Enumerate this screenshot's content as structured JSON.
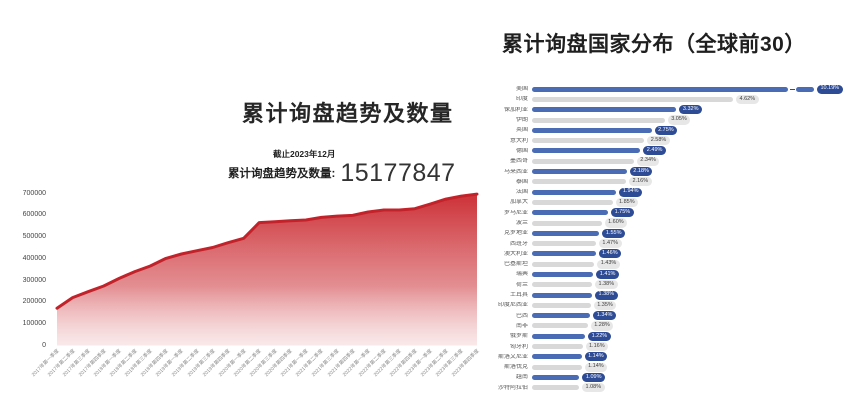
{
  "trend_chart": {
    "title": "累计询盘趋势及数量",
    "asof_label": "截止2023年12月",
    "total_label": "累计询盘趋势及数量:",
    "total_value": "15177847"
  },
  "country_chart": {
    "title": "累计询盘国家分布（全球前30）"
  },
  "colors": {
    "area_red_top": "#cb2d33",
    "line_red": "#c2232b",
    "bar_blue": "#4a6cb4",
    "pill_blue": "#2e4c96",
    "bar_gray": "#d8d8d8",
    "pill_gray": "#e7e7e7"
  },
  "chart_data": [
    {
      "type": "area",
      "title": "累计询盘趋势及数量",
      "annotation": "截止2023年12月 累计询盘趋势及数量: 15177847",
      "xlabel": "",
      "ylabel": "",
      "ylim": [
        0,
        700000
      ],
      "yticks": [
        0,
        100000,
        200000,
        300000,
        400000,
        500000,
        600000,
        700000
      ],
      "grid": false,
      "x": [
        "2017年第一季度",
        "2017年第二季度",
        "2017年第三季度",
        "2017年第四季度",
        "2018年第一季度",
        "2018年第二季度",
        "2018年第三季度",
        "2018年第四季度",
        "2019年第一季度",
        "2019年第二季度",
        "2019年第三季度",
        "2019年第四季度",
        "2020年第一季度",
        "2020年第二季度",
        "2020年第三季度",
        "2020年第四季度",
        "2021年第一季度",
        "2021年第二季度",
        "2021年第三季度",
        "2021年第四季度",
        "2022年第一季度",
        "2022年第二季度",
        "2022年第三季度",
        "2022年第四季度",
        "2023年第一季度",
        "2023年第二季度",
        "2023年第三季度",
        "2023年第四季度"
      ],
      "values": [
        171000,
        220000,
        247000,
        273000,
        308000,
        339000,
        365000,
        400000,
        420000,
        435000,
        450000,
        472000,
        492000,
        564000,
        568000,
        573000,
        576000,
        588000,
        594000,
        597000,
        613000,
        622000,
        622000,
        628000,
        649000,
        672000,
        686000,
        695000
      ]
    },
    {
      "type": "bar",
      "orientation": "horizontal",
      "title": "累计询盘国家分布（全球前30）",
      "unit": "%",
      "axis_break_on_first_bar": true,
      "categories": [
        "美国",
        "印度",
        "保加利亚",
        "伊朗",
        "英国",
        "意大利",
        "德国",
        "墨西哥",
        "马来西亚",
        "泰国",
        "法国",
        "加拿大",
        "罗马尼亚",
        "波兰",
        "克罗地亚",
        "西班牙",
        "澳大利亚",
        "巴基斯坦",
        "瑞典",
        "荷兰",
        "土耳其",
        "印度尼西亚",
        "巴西",
        "南非",
        "俄罗斯",
        "匈牙利",
        "斯洛文尼亚",
        "斯洛伐克",
        "越南",
        "沙特阿拉伯"
      ],
      "values": [
        10.19,
        4.62,
        3.32,
        3.05,
        2.75,
        2.58,
        2.49,
        2.34,
        2.18,
        2.16,
        1.94,
        1.85,
        1.75,
        1.6,
        1.55,
        1.47,
        1.46,
        1.43,
        1.41,
        1.38,
        1.38,
        1.35,
        1.34,
        1.28,
        1.22,
        1.16,
        1.14,
        1.14,
        1.09,
        1.08
      ],
      "labels": [
        "10.19%",
        "4.62%",
        "3.32%",
        "3.05%",
        "2.75%",
        "2.58%",
        "2.49%",
        "2.34%",
        "2.18%",
        "2.16%",
        "1.94%",
        "1.85%",
        "1.75%",
        "1.60%",
        "1.55%",
        "1.47%",
        "1.46%",
        "1.43%",
        "1.41%",
        "1.38%",
        "1.38%",
        "1.35%",
        "1.34%",
        "1.28%",
        "1.22%",
        "1.16%",
        "1.14%",
        "1.14%",
        "1.09%",
        "1.08%"
      ]
    }
  ]
}
